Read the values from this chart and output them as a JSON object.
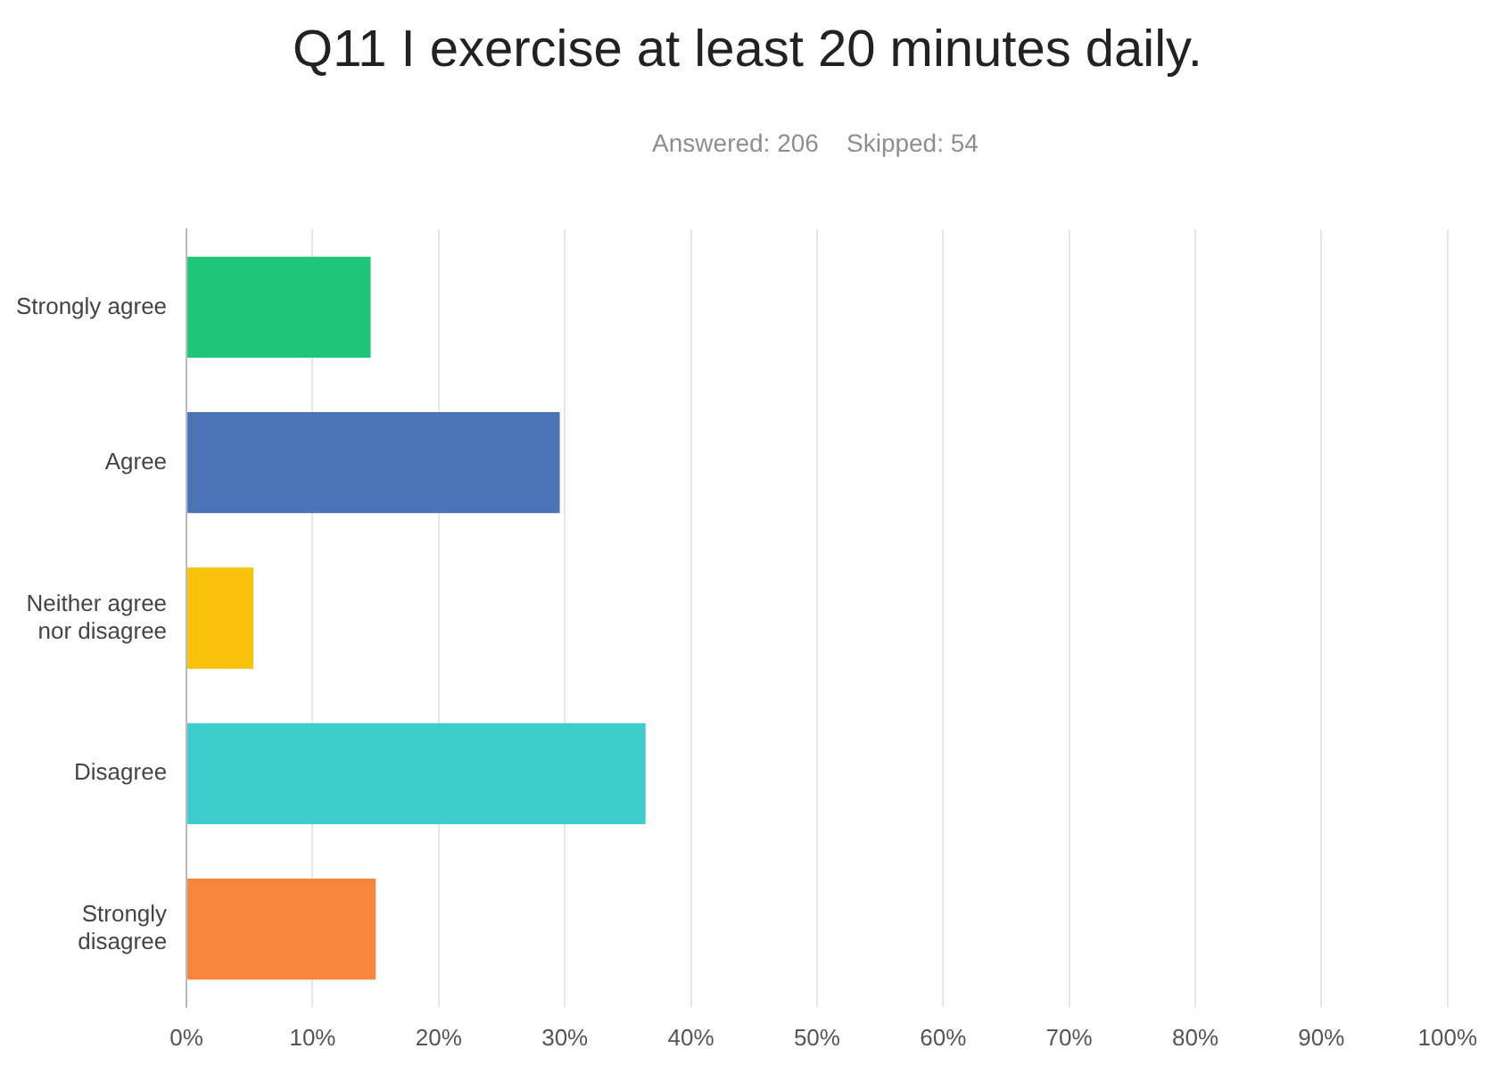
{
  "chart_data": {
    "type": "bar",
    "orientation": "horizontal",
    "title": "Q11 I exercise at least 20 minutes daily.",
    "subtitle": "Answered: 206    Skipped: 54",
    "categories": [
      "Strongly agree",
      "Agree",
      "Neither agree nor disagree",
      "Disagree",
      "Strongly disagree"
    ],
    "values": [
      14.6,
      29.6,
      5.3,
      36.4,
      15.0
    ],
    "colors": [
      "#1fc67a",
      "#4b74b8",
      "#f8c10a",
      "#3ecdcd",
      "#f7853c"
    ],
    "xlim": [
      0,
      100
    ],
    "xticks": [
      {
        "value": 0,
        "label": "0%"
      },
      {
        "value": 10,
        "label": "10%"
      },
      {
        "value": 20,
        "label": "20%"
      },
      {
        "value": 30,
        "label": "30%"
      },
      {
        "value": 40,
        "label": "40%"
      },
      {
        "value": 50,
        "label": "50%"
      },
      {
        "value": 60,
        "label": "60%"
      },
      {
        "value": 70,
        "label": "70%"
      },
      {
        "value": 80,
        "label": "80%"
      },
      {
        "value": 90,
        "label": "90%"
      },
      {
        "value": 100,
        "label": "100%"
      }
    ],
    "grid": "x",
    "legend": false
  }
}
